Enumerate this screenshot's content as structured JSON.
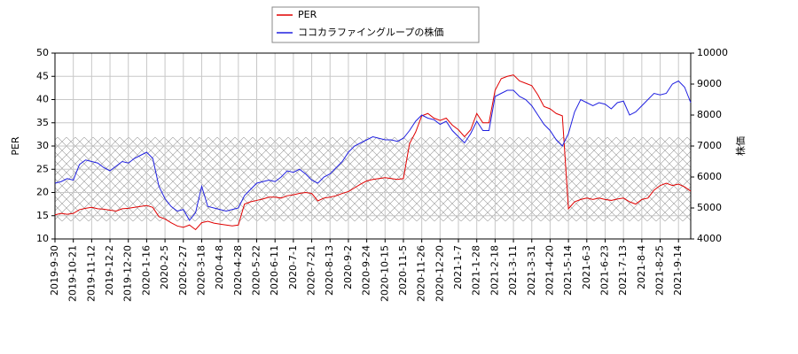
{
  "chart_data": {
    "type": "line",
    "categories": [
      "2019-9-30",
      null,
      null,
      "2019-10-21",
      null,
      null,
      "2019-11-12",
      null,
      null,
      "2019-12-2",
      null,
      null,
      "2019-12-20",
      null,
      null,
      "2020-1-16",
      null,
      null,
      "2020-2-5",
      null,
      null,
      "2020-2-27",
      null,
      null,
      "2020-3-18",
      null,
      null,
      "2020-4-8",
      null,
      null,
      "2020-4-28",
      null,
      null,
      "2020-5-22",
      null,
      null,
      "2020-6-11",
      null,
      null,
      "2020-7-1",
      null,
      null,
      "2020-7-21",
      null,
      null,
      "2020-8-13",
      null,
      null,
      "2020-9-2",
      null,
      null,
      "2020-9-24",
      null,
      null,
      "2020-10-15",
      null,
      null,
      "2020-11-5",
      null,
      null,
      "2020-11-26",
      null,
      null,
      "2020-12-20",
      null,
      null,
      "2021-1-7",
      null,
      null,
      "2021-1-28",
      null,
      null,
      "2021-2-18",
      null,
      null,
      "2021-3-11",
      null,
      null,
      "2021-3-31",
      null,
      null,
      "2021-4-20",
      null,
      null,
      "2021-5-14",
      null,
      null,
      "2021-6-3",
      null,
      null,
      "2021-6-23",
      null,
      null,
      "2021-7-13",
      null,
      null,
      "2021-8-4",
      null,
      null,
      "2021-8-25",
      null,
      null,
      "2021-9-14",
      null,
      null
    ],
    "series": [
      {
        "name": "PER",
        "color": "#e00000",
        "values": [
          15.2,
          15.5,
          15.3,
          15.5,
          16.3,
          16.6,
          16.8,
          16.5,
          16.4,
          16.2,
          16.0,
          16.5,
          16.6,
          16.8,
          17.0,
          17.2,
          16.8,
          14.8,
          14.3,
          13.5,
          12.8,
          12.5,
          13.0,
          12.0,
          13.5,
          13.8,
          13.4,
          13.2,
          13.0,
          12.8,
          13.0,
          17.5,
          18.0,
          18.3,
          18.6,
          19.0,
          19.0,
          18.8,
          19.3,
          19.5,
          19.8,
          20.0,
          19.8,
          18.2,
          18.8,
          19.0,
          19.3,
          19.8,
          20.2,
          21.0,
          21.8,
          22.5,
          22.8,
          23.0,
          23.2,
          23.0,
          22.8,
          23.0,
          30.5,
          33.0,
          36.5,
          37.0,
          36.0,
          35.5,
          36.0,
          34.5,
          33.5,
          32.0,
          33.5,
          37.0,
          35.0,
          35.0,
          42.0,
          44.5,
          45.0,
          45.3,
          44.0,
          43.5,
          43.0,
          41.0,
          38.5,
          38.0,
          37.0,
          36.5,
          16.5,
          18.0,
          18.5,
          18.8,
          18.5,
          18.8,
          18.5,
          18.3,
          18.6,
          18.8,
          18.0,
          17.5,
          18.5,
          18.8,
          20.5,
          21.5,
          22.0,
          21.5,
          21.8,
          21.2,
          20.3
        ]
      },
      {
        "name": "ココカラファイングループの株価",
        "color": "#2020e0",
        "axis": "y2",
        "values": [
          5800,
          5850,
          5950,
          5900,
          6400,
          6550,
          6500,
          6450,
          6300,
          6200,
          6350,
          6500,
          6450,
          6600,
          6700,
          6800,
          6600,
          5700,
          5300,
          5050,
          4900,
          4950,
          4600,
          4850,
          5700,
          5050,
          5000,
          4950,
          4900,
          4950,
          5000,
          5400,
          5600,
          5800,
          5850,
          5900,
          5850,
          6000,
          6200,
          6150,
          6250,
          6100,
          5900,
          5800,
          6000,
          6100,
          6300,
          6500,
          6800,
          7000,
          7100,
          7200,
          7300,
          7250,
          7200,
          7200,
          7150,
          7250,
          7500,
          7800,
          8000,
          7900,
          7850,
          7700,
          7800,
          7500,
          7300,
          7100,
          7400,
          7800,
          7500,
          7500,
          8600,
          8700,
          8800,
          8800,
          8600,
          8500,
          8300,
          8000,
          7700,
          7500,
          7200,
          7000,
          7400,
          8100,
          8500,
          8400,
          8300,
          8400,
          8350,
          8200,
          8400,
          8450,
          8000,
          8100,
          8300,
          8500,
          8700,
          8650,
          8700,
          9000,
          9100,
          8900,
          8400
        ]
      }
    ],
    "ylabel": "PER",
    "y2label": "株価",
    "ylim": [
      10,
      50
    ],
    "yticks": [
      10,
      15,
      20,
      25,
      30,
      35,
      40,
      45,
      50
    ],
    "y2lim": [
      4000,
      10000
    ],
    "y2ticks": [
      4000,
      5000,
      6000,
      7000,
      8000,
      9000,
      10000
    ],
    "grid": true
  }
}
